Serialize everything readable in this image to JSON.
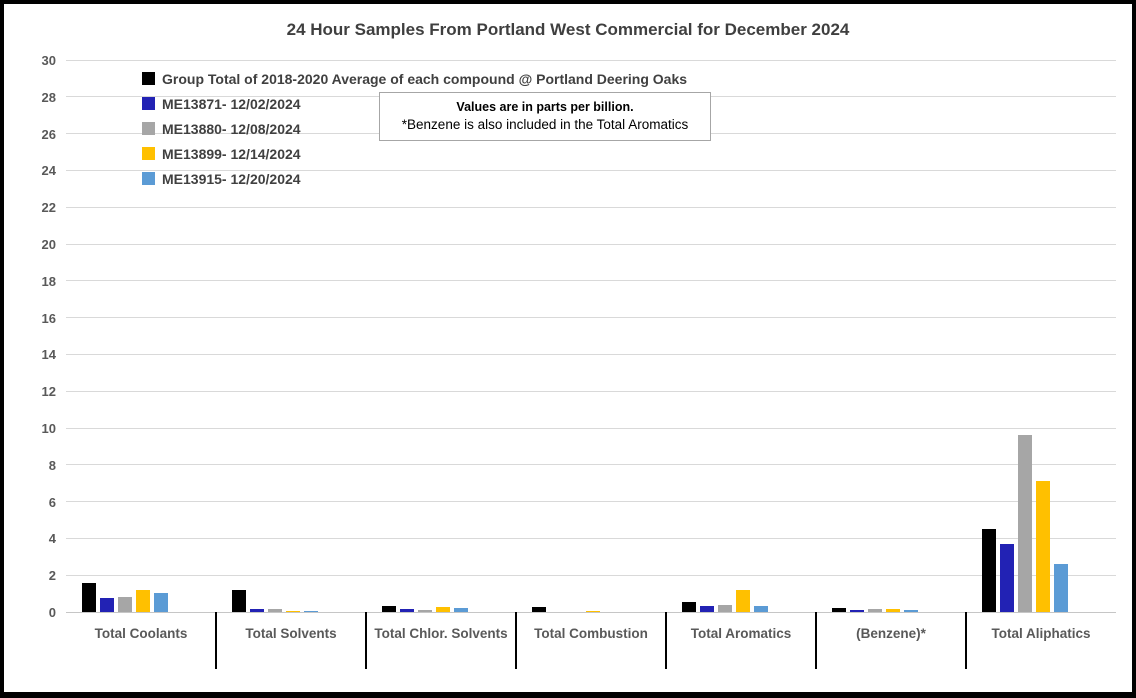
{
  "chart_data": {
    "type": "bar",
    "title": "24 Hour Samples From Portland West Commercial for December 2024",
    "values_unit": "parts per billion",
    "categories": [
      "Total Coolants",
      "Total Solvents",
      "Total Chlor. Solvents",
      "Total Combustion",
      "Total Aromatics",
      "(Benzene)*",
      "Total Aliphatics"
    ],
    "series": [
      {
        "name": "Group Total of 2018-2020 Average of each compound @ Portland Deering Oaks",
        "color": "#000000",
        "values": [
          1.55,
          1.2,
          0.35,
          0.25,
          0.55,
          0.2,
          4.5
        ]
      },
      {
        "name": "ME13871- 12/02/2024",
        "color": "#2222B4",
        "values": [
          0.75,
          0.15,
          0.15,
          0,
          0.3,
          0.1,
          3.7
        ]
      },
      {
        "name": "ME13880- 12/08/2024",
        "color": "#A6A6A6",
        "values": [
          0.8,
          0.15,
          0.1,
          0,
          0.4,
          0.15,
          9.6
        ]
      },
      {
        "name": "ME13899- 12/14/2024",
        "color": "#FFC000",
        "values": [
          1.2,
          0.08,
          0.25,
          0.05,
          1.2,
          0.15,
          7.1
        ]
      },
      {
        "name": "ME13915- 12/20/2024",
        "color": "#5B9BD5",
        "values": [
          1.05,
          0.08,
          0.2,
          0,
          0.35,
          0.1,
          2.6
        ]
      }
    ],
    "ylim": [
      0,
      30
    ],
    "ytick_step": 2,
    "xlabel": "",
    "ylabel": "",
    "grid": true,
    "legend_position": "top-left-inside"
  },
  "note": {
    "line1": "Values are in parts per billion.",
    "line2": "*Benzene is also included in the Total Aromatics"
  },
  "colors": {
    "gridline": "#d9d9d9",
    "axis_text": "#595959",
    "title_text": "#3f3f3f",
    "frame_border": "#000000"
  }
}
